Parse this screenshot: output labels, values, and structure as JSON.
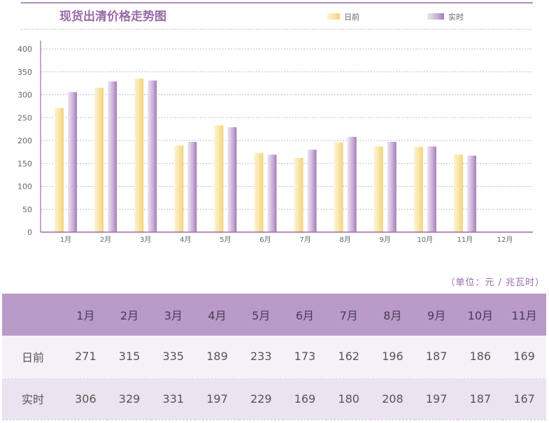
{
  "chart_data": {
    "type": "bar",
    "title": "现货出清价格走势图",
    "categories": [
      "1月",
      "2月",
      "3月",
      "4月",
      "5月",
      "6月",
      "7月",
      "8月",
      "9月",
      "10月",
      "11月",
      "12月"
    ],
    "series": [
      {
        "name": "日前",
        "values": [
          271,
          315,
          335,
          189,
          233,
          173,
          162,
          196,
          187,
          186,
          169,
          null
        ]
      },
      {
        "name": "实时",
        "values": [
          306,
          329,
          331,
          197,
          229,
          169,
          180,
          208,
          197,
          187,
          167,
          null
        ]
      }
    ],
    "ylim": [
      0,
      400
    ],
    "yticks": [
      0,
      50,
      100,
      150,
      200,
      250,
      300,
      350,
      400
    ],
    "xlabel": "",
    "ylabel": "",
    "legend_position": "top-right",
    "grid": true
  },
  "colors": {
    "day_ahead": "#f6dc8e",
    "realtime": "#b793c6",
    "accent": "#9a6aa8",
    "header_bg": "#b99ac9"
  },
  "unit_note": "（单位：元 / 兆瓦时）",
  "table": {
    "headers": [
      "",
      "1月",
      "2月",
      "3月",
      "4月",
      "5月",
      "6月",
      "7月",
      "8月",
      "9月",
      "10月",
      "11月"
    ],
    "rows": [
      {
        "label": "日前",
        "values": [
          "271",
          "315",
          "335",
          "189",
          "233",
          "173",
          "162",
          "196",
          "187",
          "186",
          "169"
        ]
      },
      {
        "label": "实时",
        "values": [
          "306",
          "329",
          "331",
          "197",
          "229",
          "169",
          "180",
          "208",
          "197",
          "187",
          "167"
        ]
      }
    ]
  }
}
